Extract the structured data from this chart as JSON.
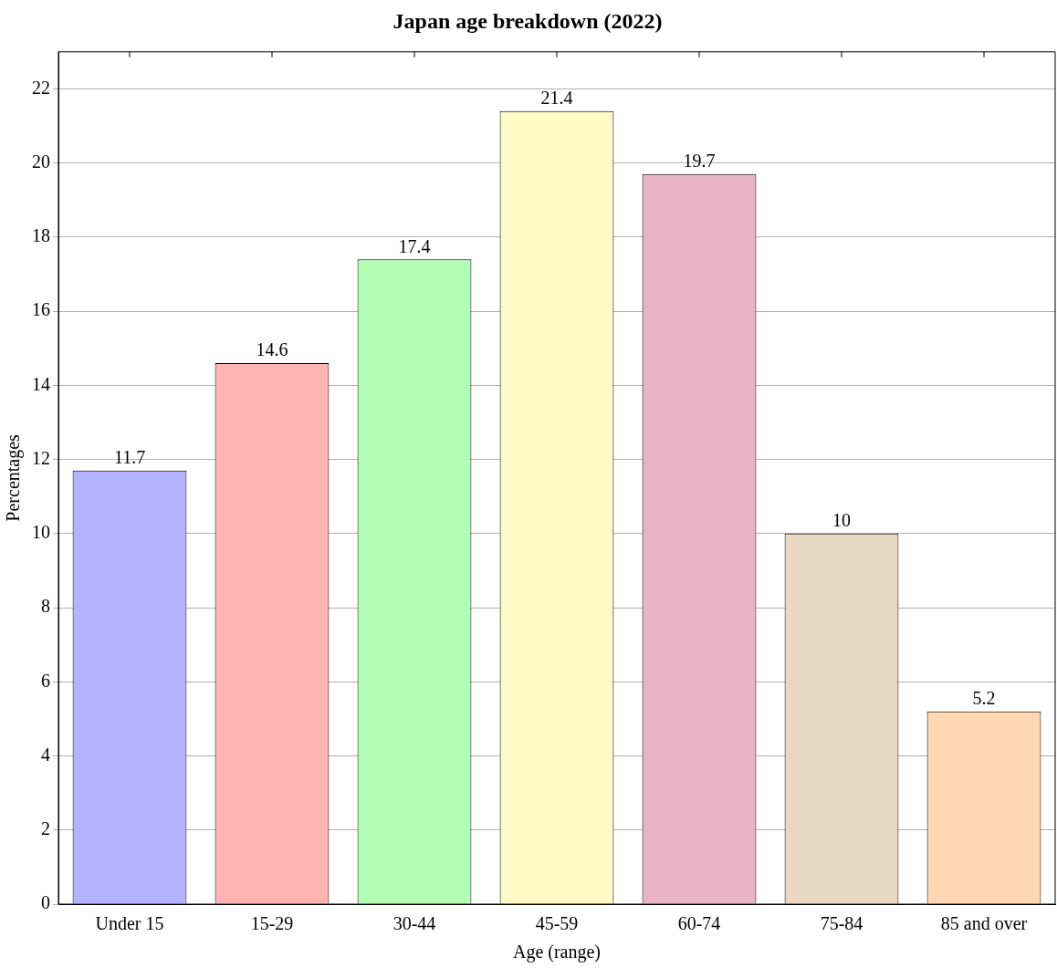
{
  "chart_data": {
    "type": "bar",
    "title": "Japan age breakdown (2022)",
    "xlabel": "Age (range)",
    "ylabel": "Percentages",
    "categories": [
      "Under 15",
      "15-29",
      "30-44",
      "45-59",
      "60-74",
      "75-84",
      "85 and over"
    ],
    "values": [
      11.7,
      14.6,
      17.4,
      21.4,
      19.7,
      10,
      5.2
    ],
    "colors": [
      "#b3b3ff",
      "#ffb3b3",
      "#b3ffb3",
      "#fff9c4",
      "#ebb3c6",
      "#e9d9c4",
      "#ffd8b3"
    ],
    "ylim": [
      0,
      23
    ],
    "yticks": [
      0,
      2,
      4,
      6,
      8,
      10,
      12,
      14,
      16,
      18,
      20,
      22
    ],
    "grid": "y",
    "data_labels": true
  }
}
